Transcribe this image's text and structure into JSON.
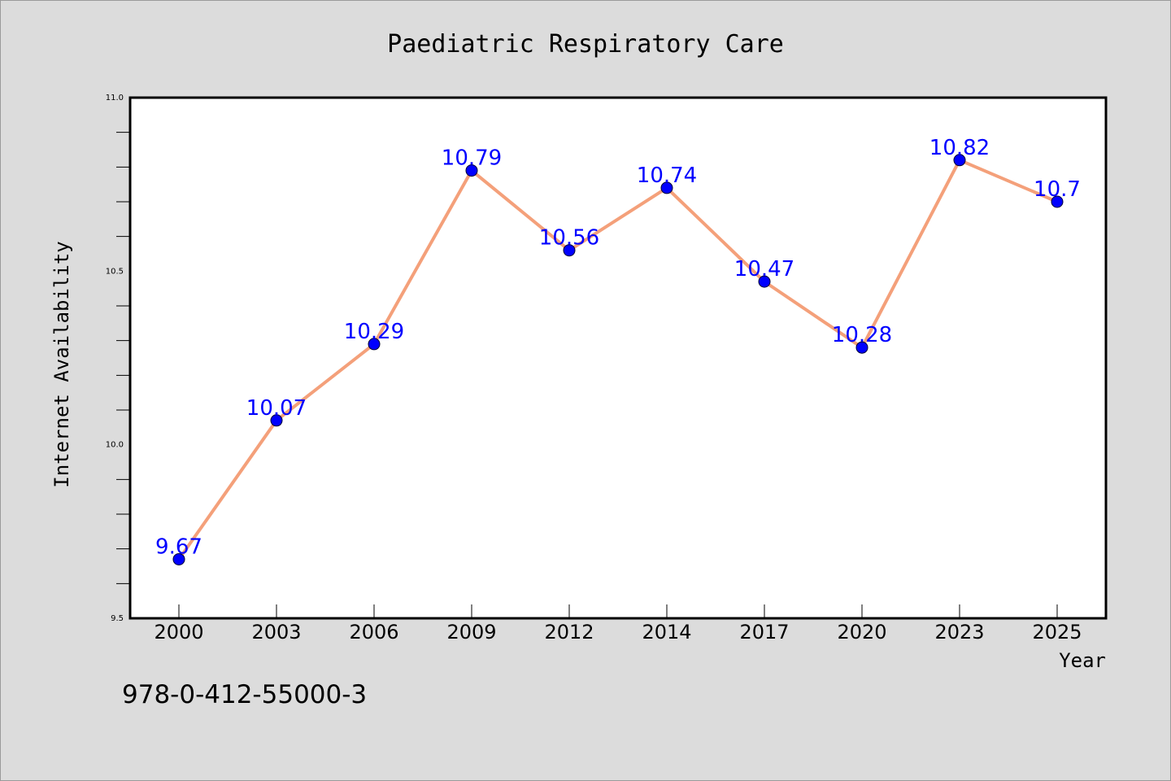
{
  "chart_data": {
    "type": "line",
    "title": "Paediatric Respiratory Care",
    "xlabel": "Year",
    "ylabel": "Internet Availability",
    "categories": [
      "2000",
      "2003",
      "2006",
      "2009",
      "2012",
      "2014",
      "2017",
      "2020",
      "2023",
      "2025"
    ],
    "series": [
      {
        "values": [
          9.67,
          10.07,
          10.29,
          10.79,
          10.56,
          10.74,
          10.47,
          10.28,
          10.82,
          10.7
        ],
        "labels": [
          "9.67",
          "10.07",
          "10.29",
          "10.79",
          "10.56",
          "10.74",
          "10.47",
          "10.28",
          "10.82",
          "10.7"
        ],
        "line_color": "#f4a07a",
        "marker_color": "#0000ff"
      }
    ],
    "ylim": [
      9.5,
      11.0
    ],
    "yticks": [
      "9.5",
      "10.0",
      "10.5",
      "11.0"
    ],
    "grid": false,
    "legend": "none"
  },
  "footer": {
    "code": "978-0-412-55000-3"
  }
}
